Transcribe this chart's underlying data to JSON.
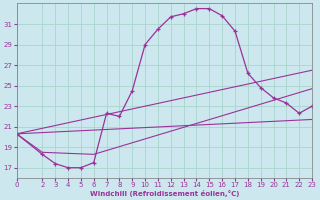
{
  "xlabel": "Windchill (Refroidissement éolien,°C)",
  "bg_color": "#cce8ee",
  "grid_color": "#aad4cc",
  "line_color": "#993399",
  "xlim": [
    0,
    23
  ],
  "ylim": [
    16,
    33
  ],
  "yticks": [
    17,
    19,
    21,
    23,
    25,
    27,
    29,
    31
  ],
  "xticks": [
    0,
    2,
    3,
    4,
    5,
    6,
    7,
    8,
    9,
    10,
    11,
    12,
    13,
    14,
    15,
    16,
    17,
    18,
    19,
    20,
    21,
    22,
    23
  ],
  "curve_main_x": [
    0,
    2,
    3,
    4,
    5,
    6,
    7,
    8,
    9,
    10,
    11,
    12,
    13,
    14,
    15,
    16,
    17,
    18,
    19,
    20,
    21,
    22,
    23
  ],
  "curve_main_y": [
    20.3,
    18.3,
    17.4,
    17.0,
    17.0,
    17.5,
    22.3,
    22.0,
    24.5,
    29.0,
    30.5,
    31.7,
    32.0,
    32.5,
    32.5,
    31.8,
    30.3,
    26.2,
    24.8,
    23.8,
    23.3,
    22.3,
    23.0
  ],
  "line1_x": [
    0,
    23
  ],
  "line1_y": [
    20.3,
    26.5
  ],
  "line2_x": [
    0,
    2,
    6,
    23
  ],
  "line2_y": [
    20.3,
    18.5,
    18.3,
    24.7
  ],
  "line3_x": [
    0,
    23
  ],
  "line3_y": [
    20.3,
    21.7
  ]
}
